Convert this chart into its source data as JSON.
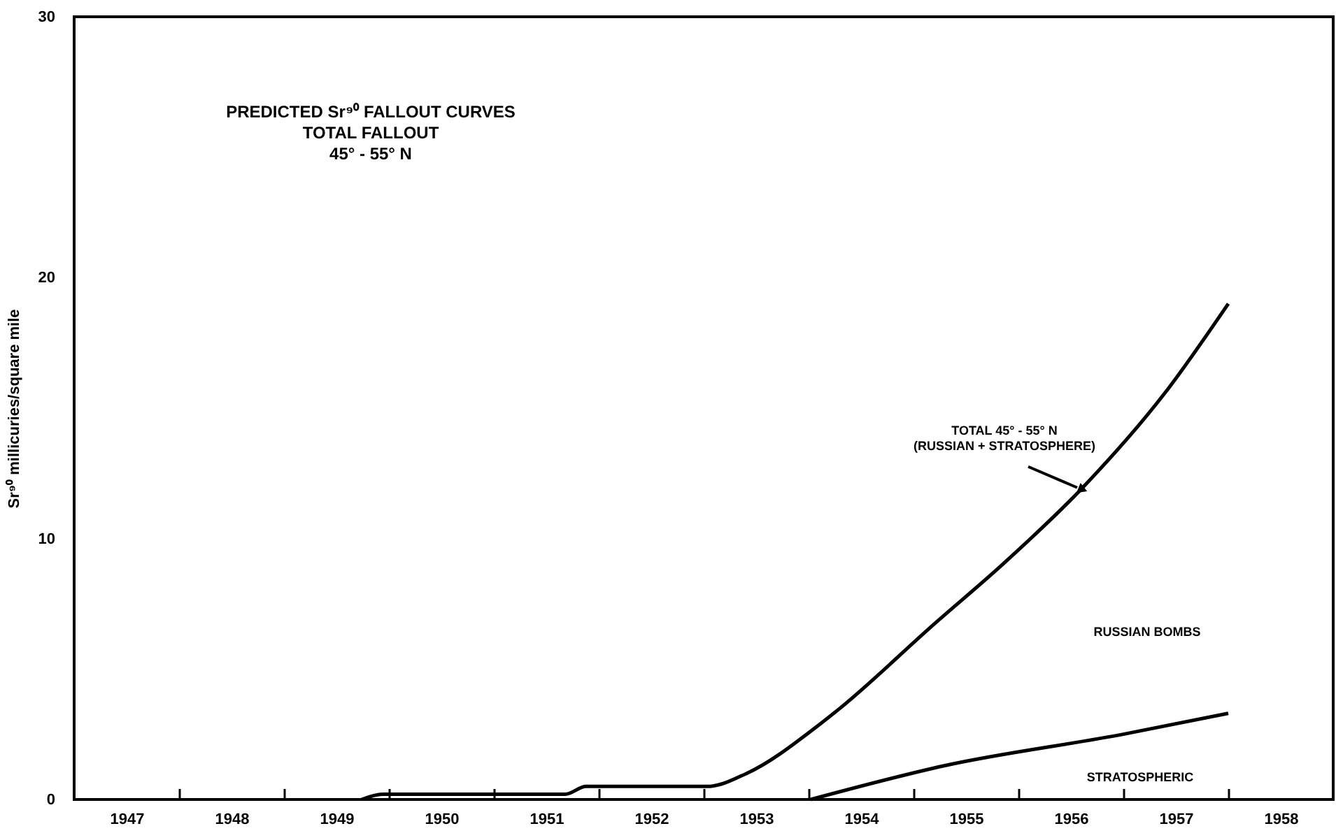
{
  "chart_data": {
    "type": "line",
    "title": "PREDICTED Sr⁹⁰ FALLOUT CURVES",
    "subtitle": "TOTAL FALLOUT\n45° - 55° N",
    "ylabel": "Sr⁹⁰ millicuries/square mile",
    "series": [
      {
        "color": "#000000",
        "x": [
          1949.74,
          1949.94,
          1951.68,
          1951.88,
          1953.04,
          1953.41,
          1954.08,
          1954.3,
          1955.19,
          1955.86,
          1956.6,
          1957.4,
          1958.0
        ],
        "values": [
          0,
          0.2,
          0.2,
          0.5,
          0.5,
          1.0,
          2.8,
          3.5,
          6.7,
          9.05,
          11.9,
          15.6,
          19.0
        ]
      },
      {
        "color": "#000000",
        "x": [
          1954.02,
          1955.3,
          1957.0,
          1958.0
        ],
        "values": [
          0,
          1.3,
          2.5,
          3.3
        ]
      }
    ],
    "annotations": [
      {
        "text": "TOTAL 45° - 55° N\n(RUSSIAN + STRATOSPHERE)",
        "x": 1956.6,
        "y": 11.9
      },
      "RUSSIAN BOMBS",
      "STRATOSPHERIC"
    ],
    "xlim": [
      1947,
      1959
    ],
    "xticks": [
      {
        "value": 1947.5,
        "label": "1947"
      },
      {
        "value": 1948,
        "label": null
      },
      {
        "value": 1948.5,
        "label": "1948"
      },
      {
        "value": 1949,
        "label": null
      },
      {
        "value": 1949.5,
        "label": "1949"
      },
      {
        "value": 1950,
        "label": null
      },
      {
        "value": 1950.5,
        "label": "1950"
      },
      {
        "value": 1951,
        "label": null
      },
      {
        "value": 1951.5,
        "label": "1951"
      },
      {
        "value": 1952,
        "label": null
      },
      {
        "value": 1952.5,
        "label": "1952"
      },
      {
        "value": 1953,
        "label": null
      },
      {
        "value": 1953.5,
        "label": "1953"
      },
      {
        "value": 1954,
        "label": null
      },
      {
        "value": 1954.5,
        "label": "1954"
      },
      {
        "value": 1955,
        "label": null
      },
      {
        "value": 1955.5,
        "label": "1955"
      },
      {
        "value": 1956,
        "label": null
      },
      {
        "value": 1956.5,
        "label": "1956"
      },
      {
        "value": 1957,
        "label": null
      },
      {
        "value": 1957.5,
        "label": "1957"
      },
      {
        "value": 1958,
        "label": null
      },
      {
        "value": 1958.5,
        "label": "1958"
      }
    ],
    "ylim": [
      0,
      30
    ],
    "yticks": [
      0,
      10,
      20,
      30
    ]
  }
}
